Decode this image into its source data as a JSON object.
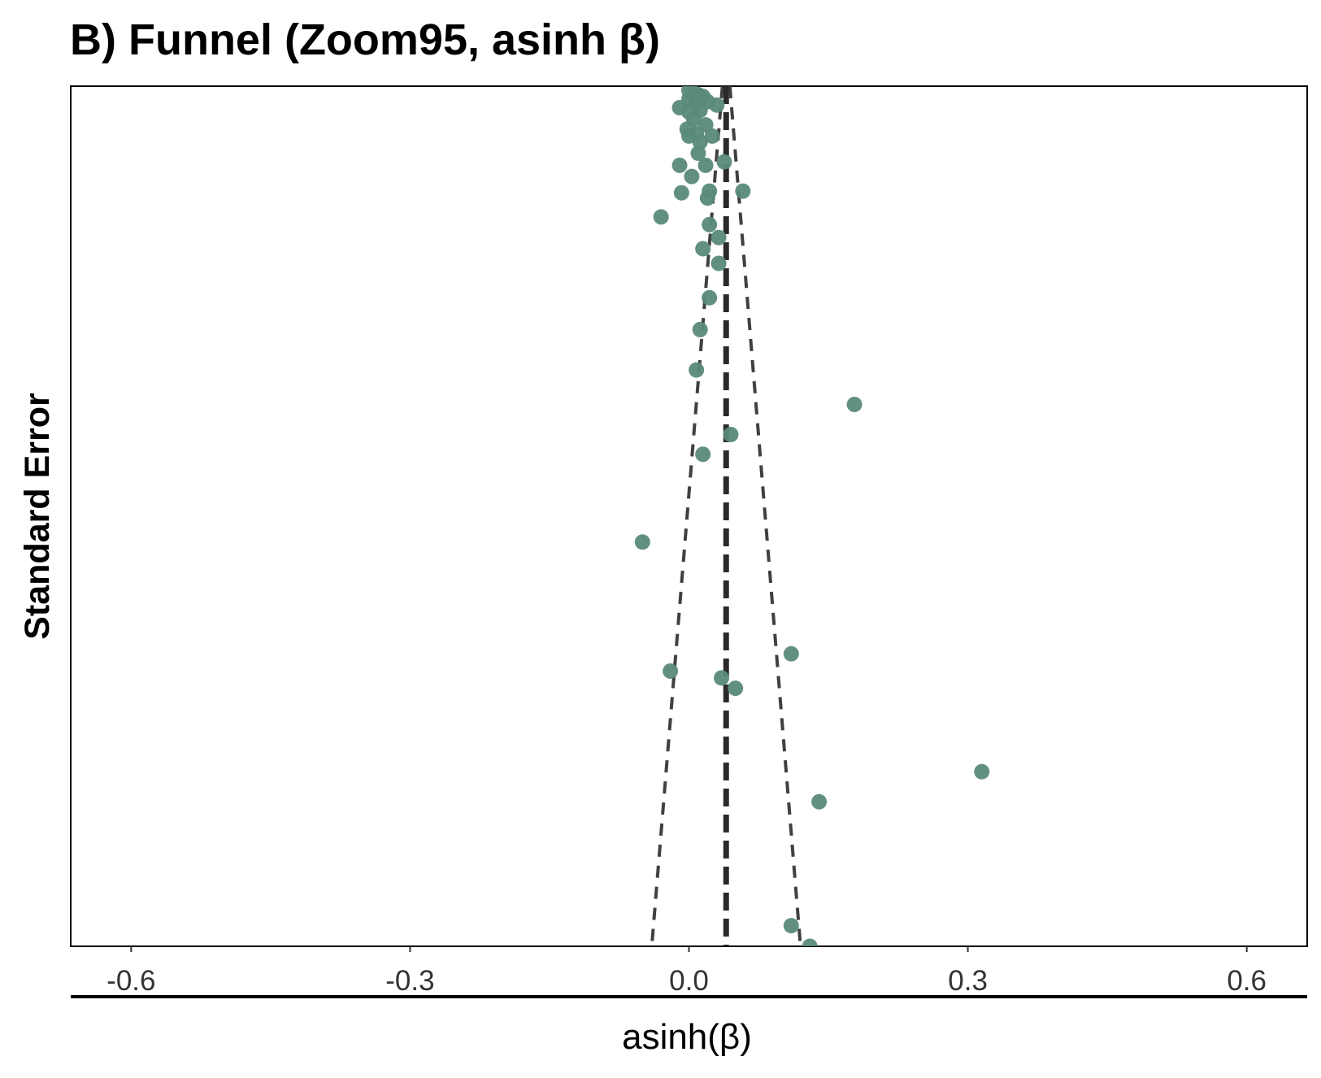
{
  "chart_data": {
    "type": "scatter",
    "title": "B) Funnel (Zoom95, asinh β)",
    "xlabel": "asinh(β)",
    "ylabel": "Standard Error",
    "xlim": [
      -0.665,
      0.665
    ],
    "ylim": [
      0.0,
      0.1
    ],
    "y_reversed": true,
    "y_tick_labels_shown": false,
    "x_ticks": [
      -0.6,
      -0.3,
      0.0,
      0.3,
      0.6
    ],
    "x_tick_labels": [
      "-0.6",
      "-0.3",
      "0.0",
      "0.3",
      "0.6"
    ],
    "grid": false,
    "legend": "none",
    "point_color": "#5a8a78",
    "line_color": "#404040",
    "reference_line": {
      "x": 0.04,
      "style": "dashed"
    },
    "funnel_lines": {
      "center": 0.04,
      "lower": [
        [
          0.036,
          0.0
        ],
        [
          -0.04,
          0.1
        ]
      ],
      "upper": [
        [
          0.044,
          0.0
        ],
        [
          0.12,
          0.1
        ]
      ],
      "style": "dashed"
    },
    "points": [
      {
        "x": 0.0,
        "y": 0.0005
      },
      {
        "x": 0.005,
        "y": 0.0008
      },
      {
        "x": 0.01,
        "y": 0.001
      },
      {
        "x": 0.0,
        "y": 0.0015
      },
      {
        "x": 0.008,
        "y": 0.002
      },
      {
        "x": 0.015,
        "y": 0.0012
      },
      {
        "x": 0.02,
        "y": 0.0018
      },
      {
        "x": -0.01,
        "y": 0.0025
      },
      {
        "x": 0.0,
        "y": 0.003
      },
      {
        "x": 0.012,
        "y": 0.0028
      },
      {
        "x": 0.03,
        "y": 0.0022
      },
      {
        "x": 0.005,
        "y": 0.0038
      },
      {
        "x": 0.018,
        "y": 0.0045
      },
      {
        "x": -0.002,
        "y": 0.005
      },
      {
        "x": 0.008,
        "y": 0.0055
      },
      {
        "x": 0.0,
        "y": 0.0058
      },
      {
        "x": 0.025,
        "y": 0.0058
      },
      {
        "x": 0.012,
        "y": 0.0065
      },
      {
        "x": 0.01,
        "y": 0.0078
      },
      {
        "x": 0.038,
        "y": 0.0088
      },
      {
        "x": 0.018,
        "y": 0.0092
      },
      {
        "x": -0.01,
        "y": 0.0092
      },
      {
        "x": 0.003,
        "y": 0.0105
      },
      {
        "x": 0.058,
        "y": 0.0122
      },
      {
        "x": 0.022,
        "y": 0.0122
      },
      {
        "x": -0.008,
        "y": 0.0124
      },
      {
        "x": 0.02,
        "y": 0.013
      },
      {
        "x": -0.03,
        "y": 0.0152
      },
      {
        "x": 0.022,
        "y": 0.0161
      },
      {
        "x": 0.032,
        "y": 0.0176
      },
      {
        "x": 0.015,
        "y": 0.0189
      },
      {
        "x": 0.032,
        "y": 0.0206
      },
      {
        "x": 0.022,
        "y": 0.0246
      },
      {
        "x": 0.012,
        "y": 0.0283
      },
      {
        "x": 0.008,
        "y": 0.033
      },
      {
        "x": 0.178,
        "y": 0.037
      },
      {
        "x": 0.045,
        "y": 0.0405
      },
      {
        "x": 0.015,
        "y": 0.0428
      },
      {
        "x": -0.05,
        "y": 0.053
      },
      {
        "x": 0.11,
        "y": 0.066
      },
      {
        "x": -0.02,
        "y": 0.068
      },
      {
        "x": 0.035,
        "y": 0.0688
      },
      {
        "x": 0.05,
        "y": 0.07
      },
      {
        "x": 0.315,
        "y": 0.0797
      },
      {
        "x": 0.14,
        "y": 0.0832
      },
      {
        "x": 0.11,
        "y": 0.0976
      },
      {
        "x": 0.13,
        "y": 0.1
      }
    ]
  }
}
